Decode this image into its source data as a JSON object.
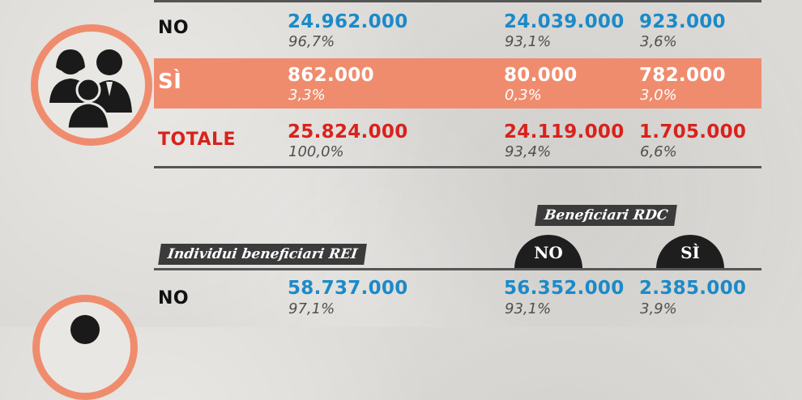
{
  "households": {
    "rows": [
      {
        "label": "NO",
        "total": "24.962.000",
        "total_pct": "96,7%",
        "rdc_no": "24.039.000",
        "rdc_no_pct": "93,1%",
        "rdc_si": "923.000",
        "rdc_si_pct": "3,6%"
      },
      {
        "label": "SÌ",
        "total": "862.000",
        "total_pct": "3,3%",
        "rdc_no": "80.000",
        "rdc_no_pct": "0,3%",
        "rdc_si": "782.000",
        "rdc_si_pct": "3,0%"
      },
      {
        "label": "TOTALE",
        "total": "25.824.000",
        "total_pct": "100,0%",
        "rdc_no": "24.119.000",
        "rdc_no_pct": "93,4%",
        "rdc_si": "1.705.000",
        "rdc_si_pct": "6,6%"
      }
    ]
  },
  "individuals": {
    "tag_rei": "Individui beneficiari REI",
    "tag_rdc": "Beneficiari RDC",
    "col_no": "NO",
    "col_si": "SÌ",
    "rows": [
      {
        "label": "NO",
        "total": "58.737.000",
        "total_pct": "97,1%",
        "rdc_no": "56.352.000",
        "rdc_no_pct": "93,1%",
        "rdc_si": "2.385.000",
        "rdc_si_pct": "3,9%"
      }
    ]
  },
  "colors": {
    "accent": "#f08c6e",
    "blue": "#1b8ac9",
    "red": "#d9221c",
    "dark": "#3b3b3b"
  },
  "icons": [
    "family-group-icon",
    "person-icon"
  ]
}
